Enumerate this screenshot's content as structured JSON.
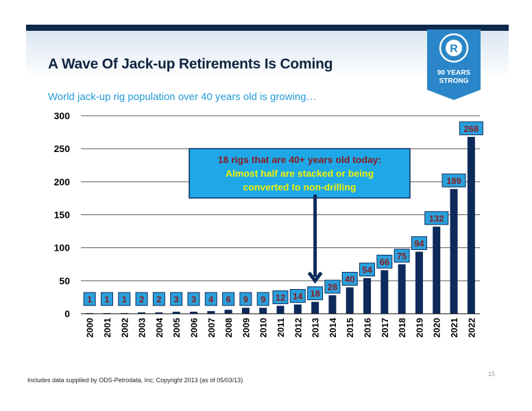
{
  "slide": {
    "title": "A Wave Of Jack-up Retirements Is Coming",
    "subtitle": "World jack-up rig population over 40 years old is growing…",
    "footnote": "Includes data supplied by ODS-Petrodata, Inc; Copyright 2013 (as of 05/03/13)",
    "page_number": "15"
  },
  "badge": {
    "line1": "90 YEARS",
    "line2": "STRONG",
    "letter": "R",
    "color": "#2a86c8"
  },
  "callout": {
    "line1": "18 rigs that are 40+ years old today:",
    "line2": "Almost half are stacked or being",
    "line3": "converted to non-drilling",
    "fill": "#1ea8e8",
    "line1_color": "#8b1a1a",
    "line2_color": "#f2f200"
  },
  "chart_data": {
    "type": "bar",
    "categories": [
      "2000",
      "2001",
      "2002",
      "2003",
      "2004",
      "2005",
      "2006",
      "2007",
      "2008",
      "2009",
      "2010",
      "2011",
      "2012",
      "2013",
      "2014",
      "2015",
      "2016",
      "2017",
      "2018",
      "2019",
      "2020",
      "2021",
      "2022"
    ],
    "values": [
      1,
      1,
      1,
      2,
      2,
      3,
      3,
      4,
      6,
      9,
      9,
      12,
      14,
      18,
      28,
      40,
      54,
      66,
      75,
      94,
      132,
      189,
      268
    ],
    "ylim": [
      0,
      300
    ],
    "yticks": [
      0,
      50,
      100,
      150,
      200,
      250,
      300
    ],
    "grid": true,
    "bar_color": "#0d2a5a",
    "label_fill": "#2aa0dc",
    "label_color": "#8b1a1a",
    "arrow_color": "#0d2a5a"
  }
}
